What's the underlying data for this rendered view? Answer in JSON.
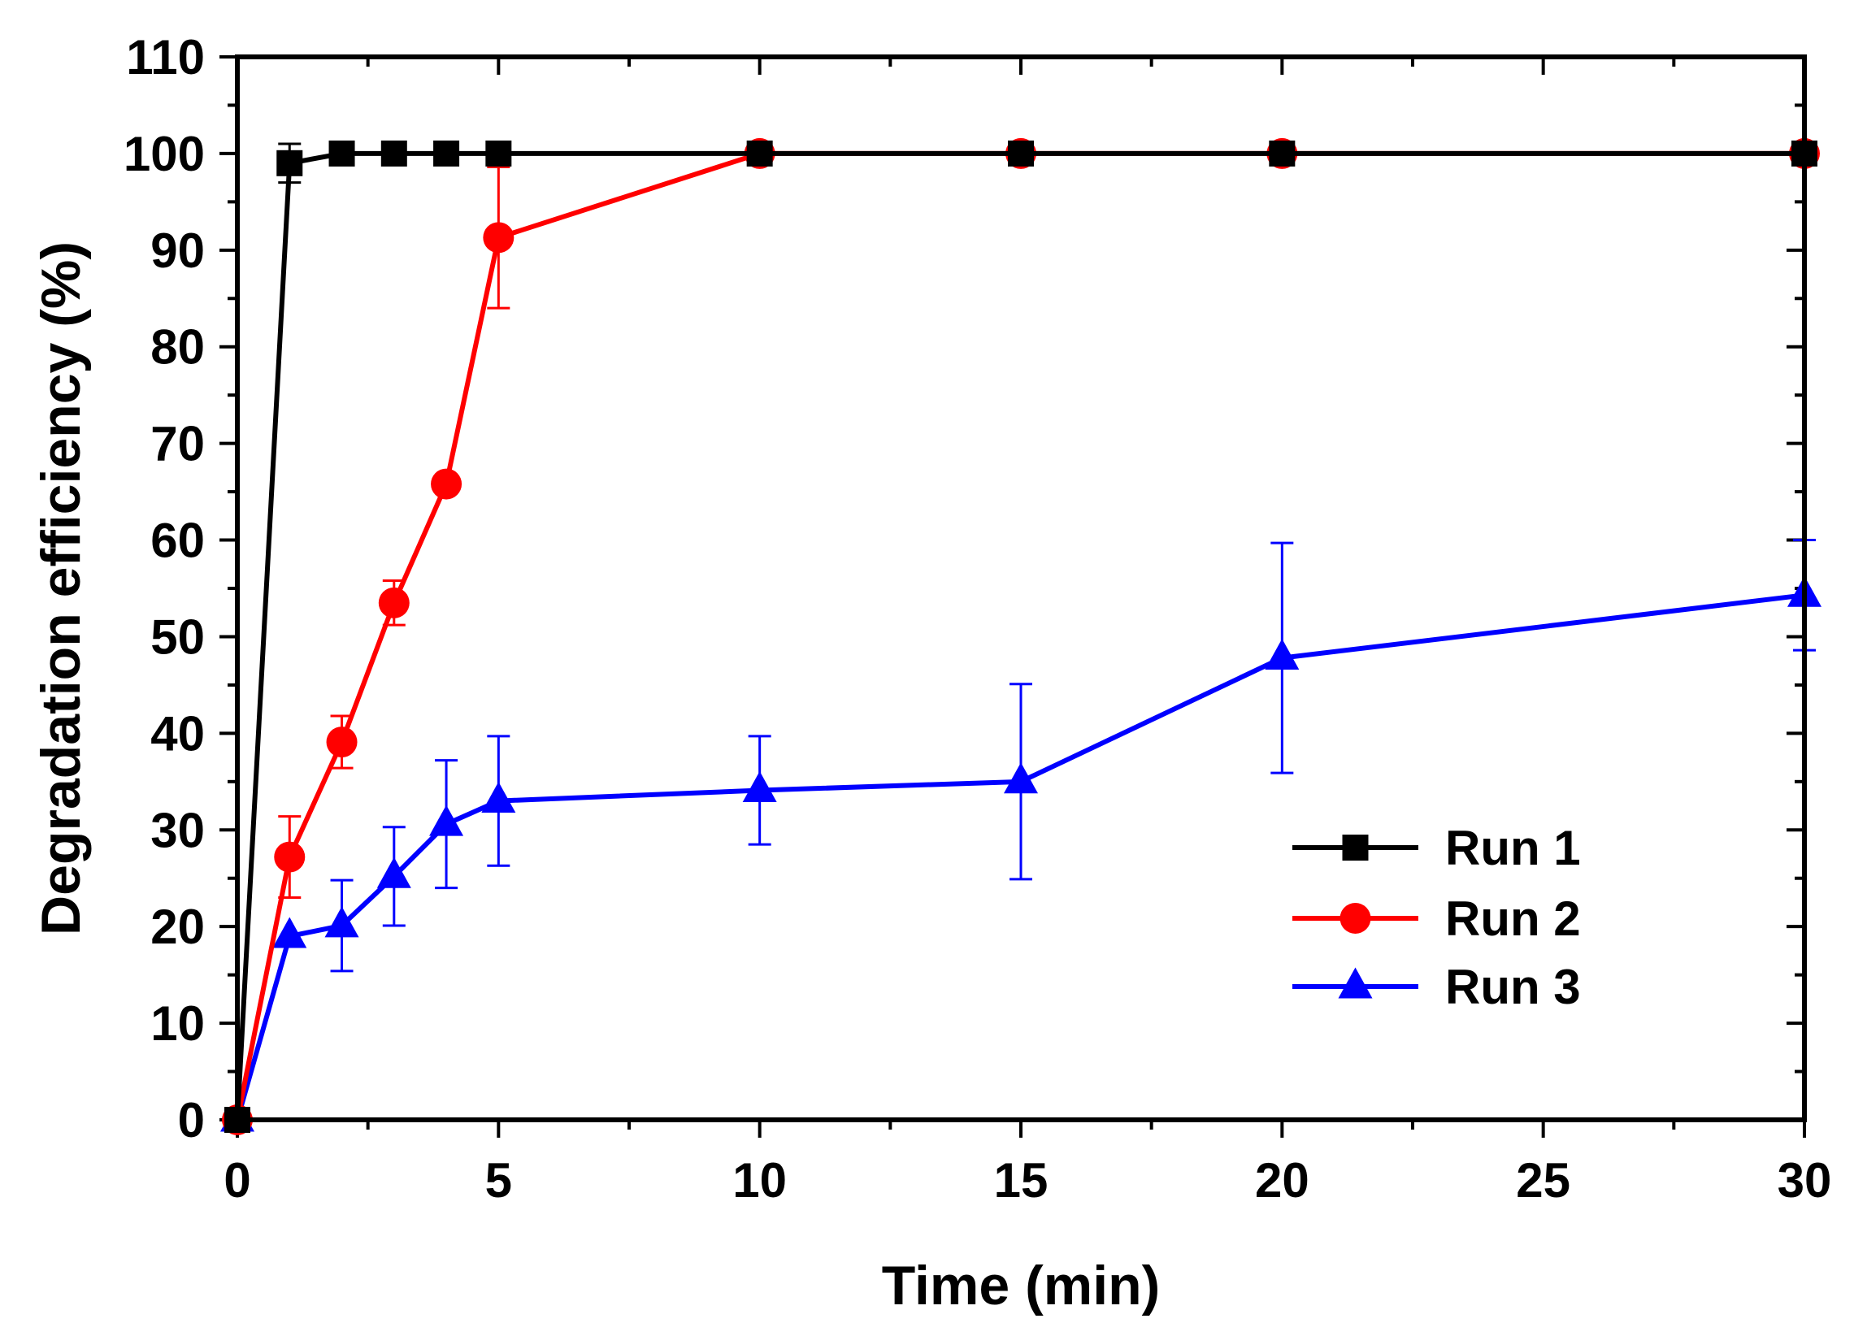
{
  "chart_data": {
    "type": "line",
    "title": "",
    "xlabel": "Time (min)",
    "ylabel": "Degradation efficiency (%)",
    "xlim": [
      0,
      30
    ],
    "ylim": [
      0,
      110
    ],
    "xticks": [
      0,
      5,
      10,
      15,
      20,
      25,
      30
    ],
    "yticks": [
      0,
      10,
      20,
      30,
      40,
      50,
      60,
      70,
      80,
      90,
      100,
      110
    ],
    "grid": false,
    "legend_position": "lower-right",
    "series": [
      {
        "name": "Run 1",
        "color": "#000000",
        "marker": "square",
        "x": [
          0,
          1,
          2,
          3,
          4,
          5,
          10,
          15,
          20,
          30
        ],
        "y": [
          0,
          99,
          100,
          100,
          100,
          100,
          100,
          100,
          100,
          100
        ],
        "err": [
          0,
          2,
          0,
          0,
          0,
          0,
          0,
          0,
          0,
          0
        ]
      },
      {
        "name": "Run 2",
        "color": "#ff0000",
        "marker": "circle",
        "x": [
          0,
          1,
          2,
          3,
          4,
          5,
          10,
          15,
          20,
          30
        ],
        "y": [
          0,
          27.2,
          39.1,
          53.5,
          65.8,
          91.3,
          100,
          100,
          100,
          100
        ],
        "err": [
          0,
          4.2,
          2.7,
          2.3,
          0,
          7.3,
          0,
          0,
          0,
          0
        ]
      },
      {
        "name": "Run 3",
        "color": "#0000ff",
        "marker": "triangle",
        "x": [
          0,
          1,
          2,
          3,
          4,
          5,
          10,
          15,
          20,
          30
        ],
        "y": [
          0,
          19,
          20.1,
          25.2,
          30.6,
          33,
          34.1,
          35,
          47.8,
          54.3
        ],
        "err": [
          0,
          0,
          4.7,
          5.1,
          6.6,
          6.7,
          5.6,
          10.1,
          11.9,
          5.7
        ]
      }
    ]
  }
}
